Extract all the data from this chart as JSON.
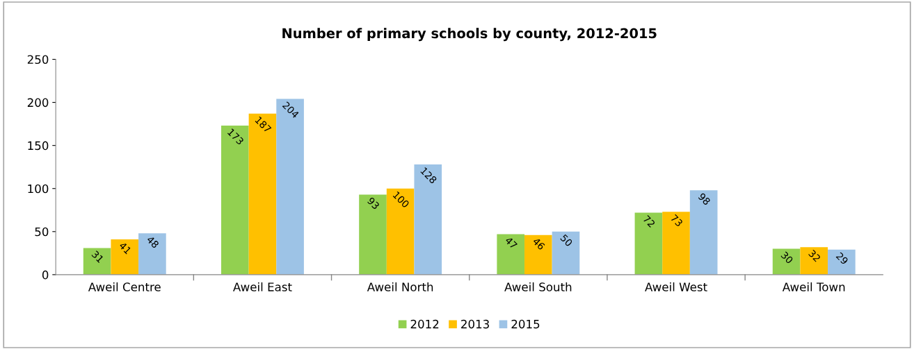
{
  "chart_data": {
    "type": "bar",
    "title": "Number of primary schools by county, 2012-2015",
    "categories": [
      "Aweil Centre",
      "Aweil East",
      "Aweil North",
      "Aweil South",
      "Aweil West",
      "Aweil Town"
    ],
    "series": [
      {
        "name": "2012",
        "color": "#92d050",
        "values": [
          31,
          173,
          93,
          47,
          72,
          30
        ]
      },
      {
        "name": "2013",
        "color": "#ffc000",
        "values": [
          41,
          187,
          100,
          46,
          73,
          32
        ]
      },
      {
        "name": "2015",
        "color": "#9dc3e6",
        "values": [
          48,
          204,
          128,
          50,
          98,
          29
        ]
      }
    ],
    "ylim": [
      0,
      250
    ],
    "yticks": [
      0,
      50,
      100,
      150,
      200,
      250
    ],
    "grid": false,
    "legend": "bottom",
    "data_labels": true
  }
}
